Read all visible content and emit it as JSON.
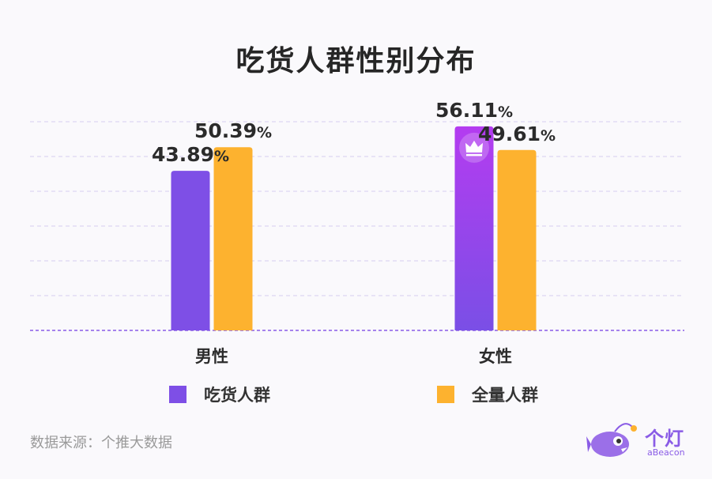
{
  "title": "吃货人群性别分布",
  "source": "数据来源：个推大数据",
  "brand": {
    "name": "个灯",
    "sub": "aBeacon",
    "color": "#8a5ce6"
  },
  "legend": [
    {
      "label": "吃货人群",
      "color": "#7e4fe6"
    },
    {
      "label": "全量人群",
      "color": "#fdb22f"
    }
  ],
  "chart_data": {
    "type": "bar",
    "title": "吃货人群性别分布",
    "categories": [
      "男性",
      "女性"
    ],
    "series": [
      {
        "name": "吃货人群",
        "values": [
          43.89,
          56.11
        ],
        "color": "#7e4fe6"
      },
      {
        "name": "全量人群",
        "values": [
          50.39,
          49.61
        ],
        "color": "#fdb22f"
      }
    ],
    "value_suffix": "%",
    "highlight": {
      "series": 0,
      "category": 1,
      "icon": "crown-icon",
      "gradient": [
        "#b43cf0",
        "#7a4fe6"
      ]
    },
    "ylim": [
      0,
      60
    ],
    "grid": true,
    "legend_position": "bottom"
  }
}
